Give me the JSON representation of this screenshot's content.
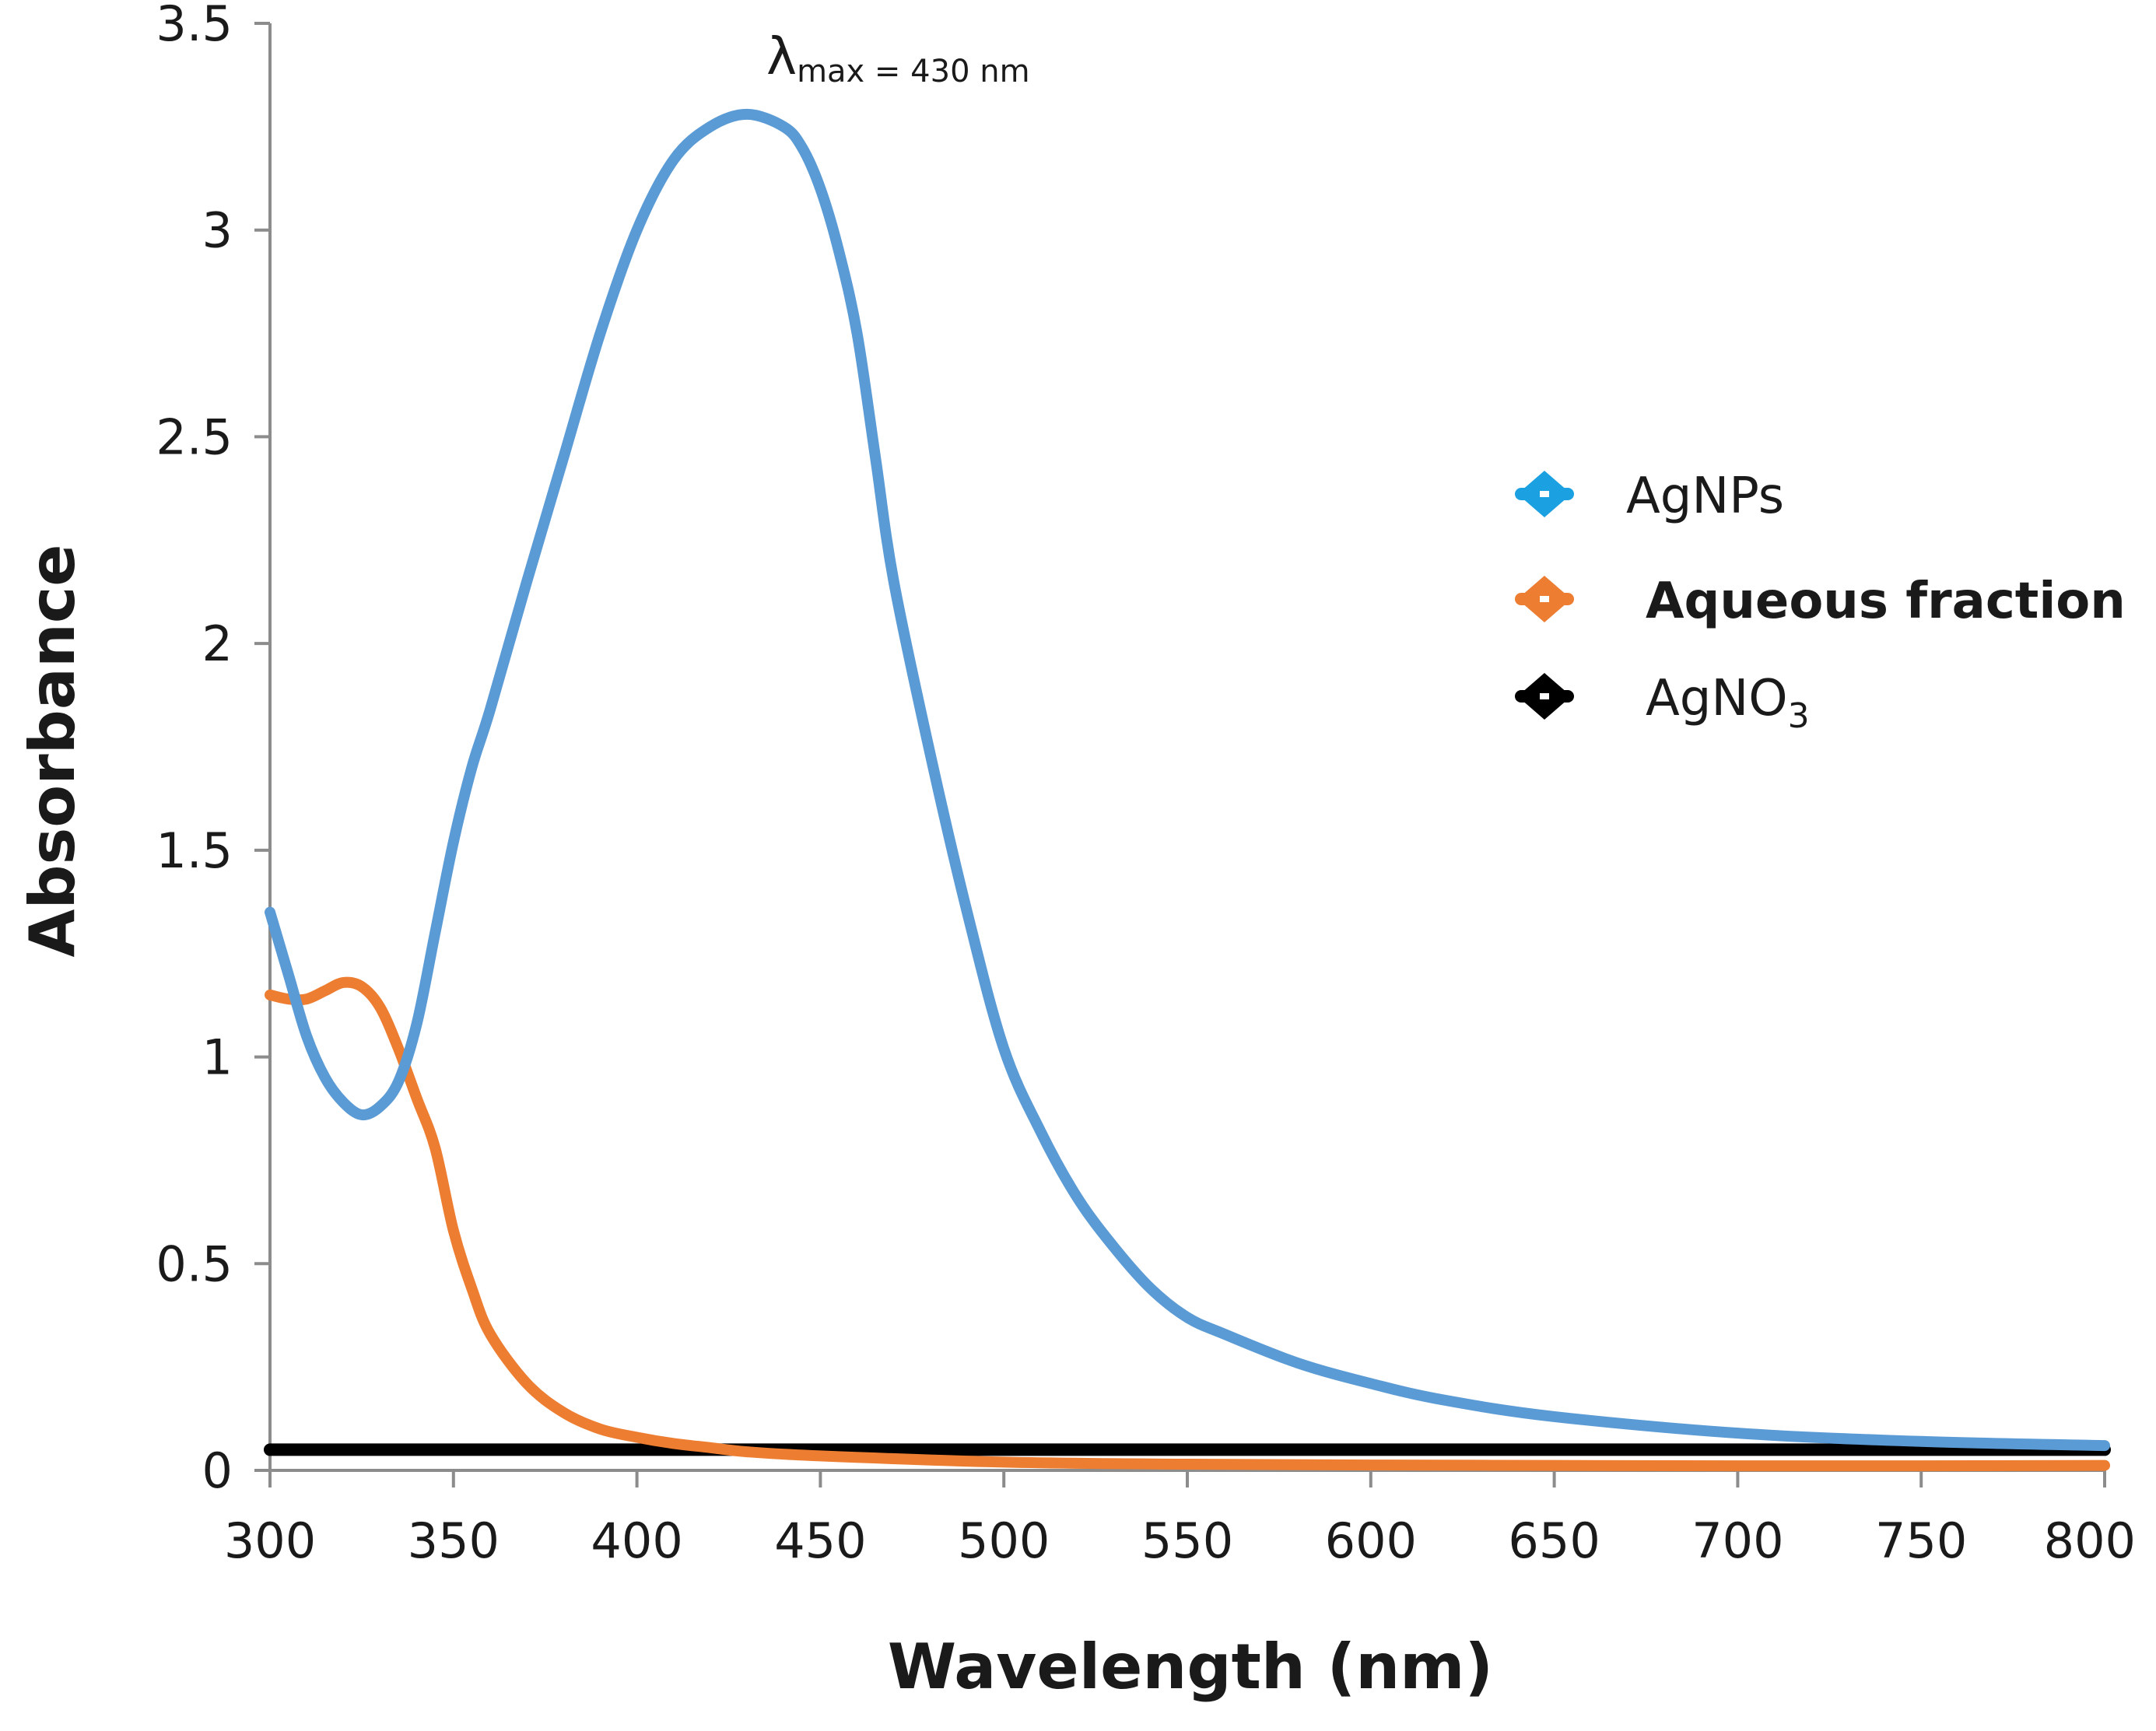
{
  "chart_data": {
    "type": "line",
    "title": "",
    "xlabel": "Wavelength (nm)",
    "ylabel": "Absorbance",
    "xlim": [
      300,
      800
    ],
    "ylim": [
      0,
      3.5
    ],
    "xticks": [
      300,
      350,
      400,
      450,
      500,
      550,
      600,
      650,
      700,
      750,
      800
    ],
    "xtick_labels": [
      "300",
      "350",
      "400",
      "450",
      "500",
      "550",
      "600",
      "650",
      "700",
      "750",
      "800"
    ],
    "yticks": [
      0,
      0.5,
      1,
      1.5,
      2,
      2.5,
      3,
      3.5
    ],
    "ytick_labels": [
      "0",
      "0.5",
      "1",
      "1.5",
      "2",
      "2.5",
      "3",
      "3.5"
    ],
    "grid": false,
    "legend_position": "right",
    "annotation": {
      "symbol": "λ",
      "subscript": "max",
      "text": " = 430 nm",
      "x": 430,
      "y": 3.28
    },
    "series": [
      {
        "name": "AgNPs",
        "color": "#5b9bd5",
        "marker_color": "#1ba1e2",
        "x": [
          300,
          305,
          310,
          315,
          320,
          325,
          330,
          335,
          340,
          345,
          350,
          355,
          360,
          370,
          380,
          390,
          400,
          410,
          420,
          430,
          440,
          445,
          450,
          455,
          460,
          465,
          470,
          480,
          490,
          500,
          510,
          520,
          530,
          540,
          550,
          560,
          580,
          600,
          620,
          650,
          700,
          750,
          800
        ],
        "y": [
          1.35,
          1.2,
          1.05,
          0.95,
          0.89,
          0.86,
          0.88,
          0.94,
          1.08,
          1.3,
          1.52,
          1.7,
          1.84,
          2.15,
          2.45,
          2.75,
          3.0,
          3.17,
          3.25,
          3.28,
          3.25,
          3.2,
          3.1,
          2.95,
          2.75,
          2.45,
          2.15,
          1.73,
          1.35,
          1.02,
          0.82,
          0.66,
          0.54,
          0.44,
          0.37,
          0.33,
          0.26,
          0.21,
          0.17,
          0.13,
          0.09,
          0.07,
          0.06
        ]
      },
      {
        "name": "Aqueous fraction",
        "color": "#ed7d31",
        "marker_color": "#ed7d31",
        "x": [
          300,
          305,
          310,
          315,
          320,
          325,
          330,
          335,
          340,
          345,
          350,
          355,
          360,
          370,
          380,
          390,
          400,
          410,
          420,
          430,
          450,
          500,
          550,
          600,
          650,
          700,
          750,
          800
        ],
        "y": [
          1.15,
          1.14,
          1.14,
          1.16,
          1.18,
          1.17,
          1.12,
          1.02,
          0.9,
          0.78,
          0.58,
          0.44,
          0.33,
          0.21,
          0.14,
          0.1,
          0.08,
          0.065,
          0.055,
          0.045,
          0.035,
          0.02,
          0.015,
          0.013,
          0.012,
          0.011,
          0.011,
          0.012
        ]
      },
      {
        "name": "AgNO",
        "name_subscript": "3",
        "color": "#000000",
        "marker_color": "#000000",
        "x": [
          300,
          800
        ],
        "y": [
          0.05,
          0.05
        ]
      }
    ]
  }
}
